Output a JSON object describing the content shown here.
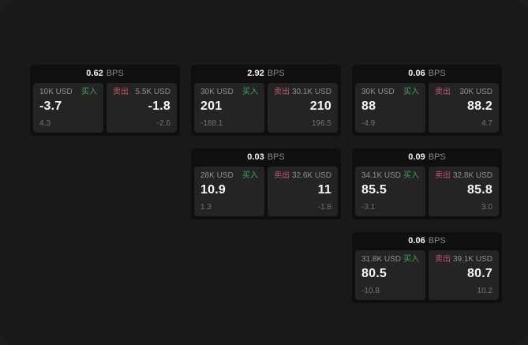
{
  "labels": {
    "buy": "买入",
    "sell": "卖出",
    "bps_unit": "BPS"
  },
  "colors": {
    "page_background": "#191919",
    "card_background": "#0f0f0f",
    "panel_background": "#242424",
    "buy_accent": "#46a05e",
    "sell_accent": "#c9556a",
    "value_text": "#f5f5f5",
    "muted_text": "#8f8f8f"
  },
  "cards": [
    {
      "bps": "0.62",
      "buy": {
        "amount": "10K USD",
        "value": "-3.7",
        "delta": "4.3"
      },
      "sell": {
        "amount": "5.5K USD",
        "value": "-1.8",
        "delta": "-2.6"
      }
    },
    {
      "bps": "2.92",
      "buy": {
        "amount": "30K USD",
        "value": "201",
        "delta": "-188.1"
      },
      "sell": {
        "amount": "30.1K USD",
        "value": "210",
        "delta": "196.5"
      }
    },
    {
      "bps": "0.06",
      "buy": {
        "amount": "30K USD",
        "value": "88",
        "delta": "-4.9"
      },
      "sell": {
        "amount": "30K USD",
        "value": "88.2",
        "delta": "4.7"
      }
    },
    {
      "bps": "0.03",
      "buy": {
        "amount": "28K USD",
        "value": "10.9",
        "delta": "1.3"
      },
      "sell": {
        "amount": "32.6K USD",
        "value": "11",
        "delta": "-1.8"
      }
    },
    {
      "bps": "0.09",
      "buy": {
        "amount": "34.1K USD",
        "value": "85.5",
        "delta": "-3.1"
      },
      "sell": {
        "amount": "32.8K USD",
        "value": "85.8",
        "delta": "3.0"
      }
    },
    {
      "bps": "0.06",
      "buy": {
        "amount": "31.8K USD",
        "value": "80.5",
        "delta": "-10.8"
      },
      "sell": {
        "amount": "39.1K USD",
        "value": "80.7",
        "delta": "10.2"
      }
    }
  ]
}
